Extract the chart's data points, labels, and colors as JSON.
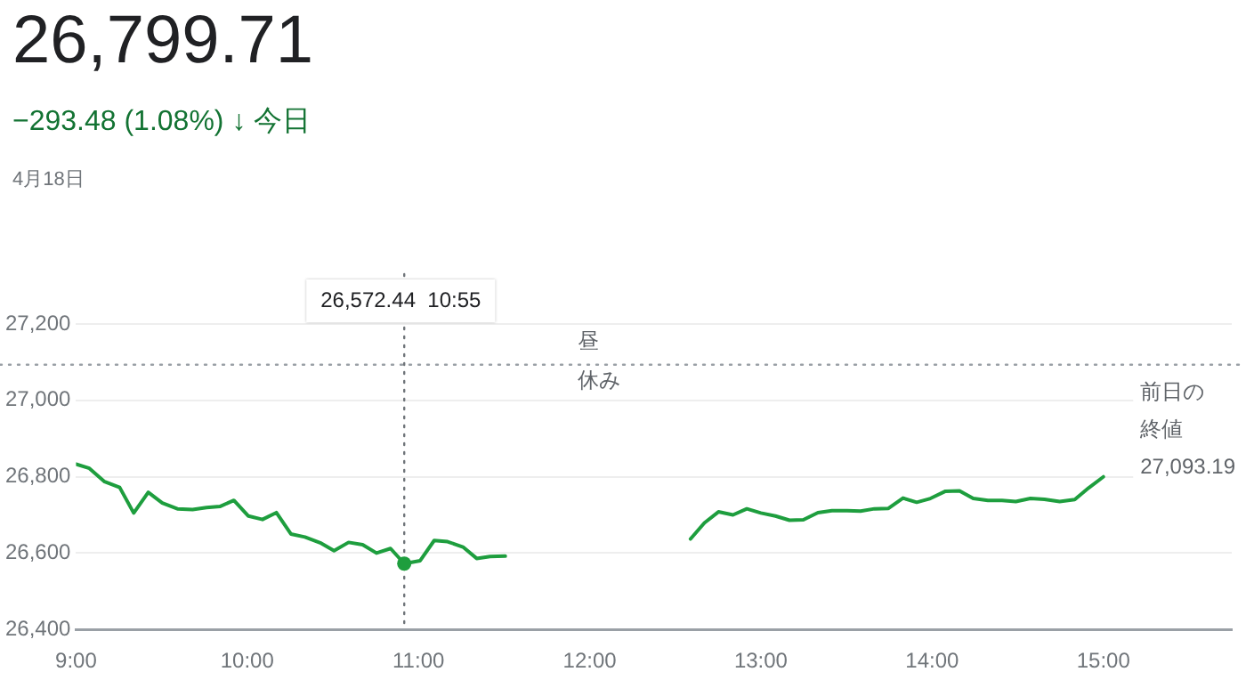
{
  "chart_data": {
    "type": "line",
    "title": "26,799.71",
    "subtitle": "−293.48 (1.08%) ↓ 今日",
    "annotations": [
      "4月18日",
      "昼",
      "休み",
      "26,572.44  10:55"
    ],
    "xlim": [
      9,
      15.75
    ],
    "xticks": [
      {
        "value": 9,
        "label": "9:00"
      },
      {
        "value": 10,
        "label": "10:00"
      },
      {
        "value": 11,
        "label": "11:00"
      },
      {
        "value": 12,
        "label": "12:00"
      },
      {
        "value": 13,
        "label": "13:00"
      },
      {
        "value": 14,
        "label": "14:00"
      },
      {
        "value": 15,
        "label": "15:00"
      }
    ],
    "ylim": [
      26400,
      27200
    ],
    "yticks": [
      {
        "value": 26400,
        "label": "26,400"
      },
      {
        "value": 26600,
        "label": "26,600"
      },
      {
        "value": 26800,
        "label": "26,800"
      },
      {
        "value": 27000,
        "label": "27,000"
      },
      {
        "value": 27200,
        "label": "27,200"
      }
    ],
    "grid": "y",
    "legend": false,
    "marker": "none",
    "line_style": "solid",
    "ref_lines": [
      {
        "axis": "y",
        "value": 27093.19,
        "label": "前日の終値27,093.19",
        "color": "#9aa0a6",
        "line_style": "dotted"
      },
      {
        "axis": "x",
        "value": 10.917,
        "label": null,
        "color": "#70757a",
        "line_style": "dotted"
      }
    ],
    "series": [
      {
        "color": "#1e9e3e",
        "x": [
          9.0,
          9.078,
          9.167,
          9.255,
          9.337,
          9.422,
          9.504,
          9.592,
          9.681,
          9.762,
          9.84,
          9.922,
          10.007,
          10.089,
          10.17,
          10.255,
          10.337,
          10.426,
          10.507,
          10.592,
          10.674,
          10.755,
          10.837,
          10.917,
          11.01,
          11.092,
          11.17,
          11.26,
          11.34,
          11.418,
          11.507,
          12.05,
          12.589,
          12.67,
          12.752,
          12.837,
          12.918,
          13.0,
          13.085,
          13.167,
          13.248,
          13.333,
          13.415,
          13.504,
          13.582,
          13.663,
          13.745,
          13.83,
          13.91,
          13.99,
          14.078,
          14.16,
          14.24,
          14.326,
          14.408,
          14.489,
          14.574,
          14.656,
          14.745,
          14.833,
          14.915,
          15.0
        ],
        "values": [
          26833,
          26822,
          26787,
          26772,
          26705,
          26759,
          26731,
          26716,
          26714,
          26719,
          26722,
          26738,
          26697,
          26688,
          26706,
          26650,
          26642,
          26627,
          26606,
          26628,
          26622,
          26600,
          26612,
          26572.44,
          26580,
          26633,
          26630,
          26616,
          26586,
          26591,
          26592,
          null,
          26637,
          26679,
          26708,
          26700,
          26716,
          26705,
          26697,
          26686,
          26687,
          26706,
          26711,
          26711,
          26710,
          26716,
          26717,
          26744,
          26733,
          26743,
          26762,
          26763,
          26743,
          26738,
          26738,
          26735,
          26743,
          26741,
          26735,
          26740,
          26771,
          26799.71
        ]
      }
    ]
  }
}
